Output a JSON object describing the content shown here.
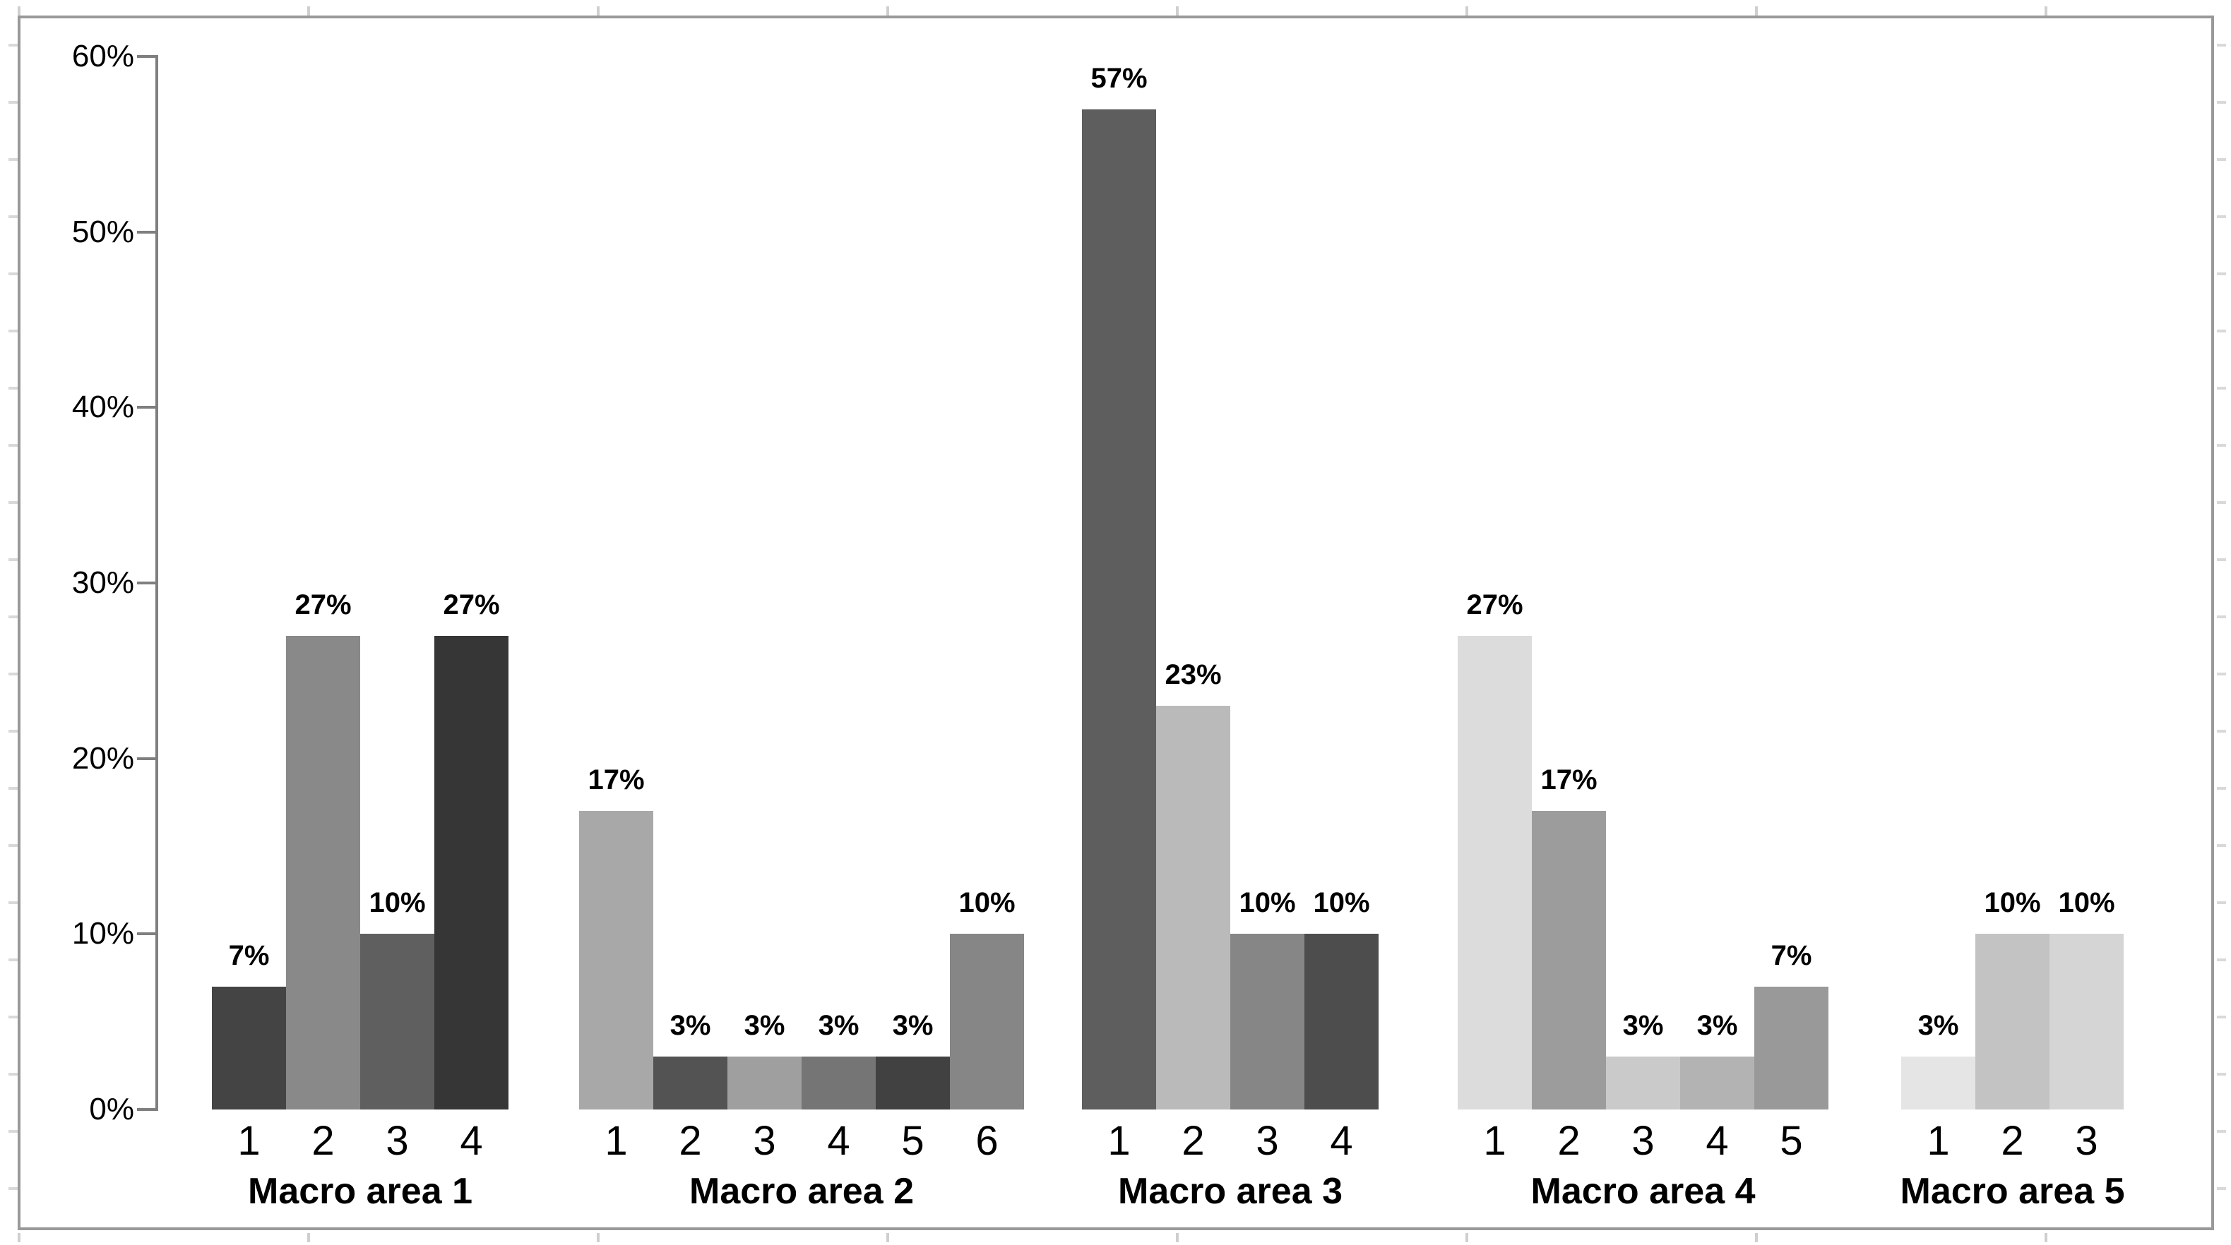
{
  "chart_data": {
    "type": "bar",
    "title": "",
    "xlabel": "",
    "ylabel": "",
    "grid": false,
    "legend": null,
    "y_axis": {
      "min": 0,
      "max": 0.6,
      "tick_step": 0.1,
      "ticks": [
        "0%",
        "10%",
        "20%",
        "30%",
        "40%",
        "50%",
        "60%"
      ]
    },
    "groups": [
      {
        "label": "Macro area 1",
        "x_labels": [
          "1",
          "2",
          "3",
          "4"
        ],
        "values": [
          0.07,
          0.27,
          0.1,
          0.27
        ],
        "data_labels": [
          "7%",
          "27%",
          "10%",
          "27%"
        ],
        "colors": [
          "#444444",
          "#898989",
          "#5f5f5f",
          "#363636"
        ]
      },
      {
        "label": "Macro area 2",
        "x_labels": [
          "1",
          "2",
          "3",
          "4",
          "5",
          "6"
        ],
        "values": [
          0.17,
          0.03,
          0.03,
          0.03,
          0.03,
          0.1
        ],
        "data_labels": [
          "17%",
          "3%",
          "3%",
          "3%",
          "3%",
          "10%"
        ],
        "colors": [
          "#a8a8a8",
          "#535353",
          "#9f9f9f",
          "#757575",
          "#414141",
          "#868686"
        ]
      },
      {
        "label": "Macro area 3",
        "x_labels": [
          "1",
          "2",
          "3",
          "4"
        ],
        "values": [
          0.57,
          0.23,
          0.1,
          0.1
        ],
        "data_labels": [
          "57%",
          "23%",
          "10%",
          "10%"
        ],
        "colors": [
          "#5e5e5e",
          "#bababa",
          "#868686",
          "#4d4d4d"
        ]
      },
      {
        "label": "Macro area 4",
        "x_labels": [
          "1",
          "2",
          "3",
          "4",
          "5"
        ],
        "values": [
          0.27,
          0.17,
          0.03,
          0.03,
          0.07
        ],
        "data_labels": [
          "27%",
          "17%",
          "3%",
          "3%",
          "7%"
        ],
        "colors": [
          "#dcdcdc",
          "#9c9c9c",
          "#cacaca",
          "#b3b3b3",
          "#999999"
        ]
      },
      {
        "label": "Macro area 5",
        "x_labels": [
          "1",
          "2",
          "3"
        ],
        "values": [
          0.03,
          0.1,
          0.1
        ],
        "data_labels": [
          "3%",
          "10%",
          "10%"
        ],
        "colors": [
          "#e5e5e5",
          "#c3c3c3",
          "#d5d5d5"
        ]
      }
    ],
    "colors": {
      "axis": "#7f7f7f",
      "chart_border": "#999999",
      "gridline_stub": "#d9d9d9",
      "text": "#000000"
    }
  }
}
